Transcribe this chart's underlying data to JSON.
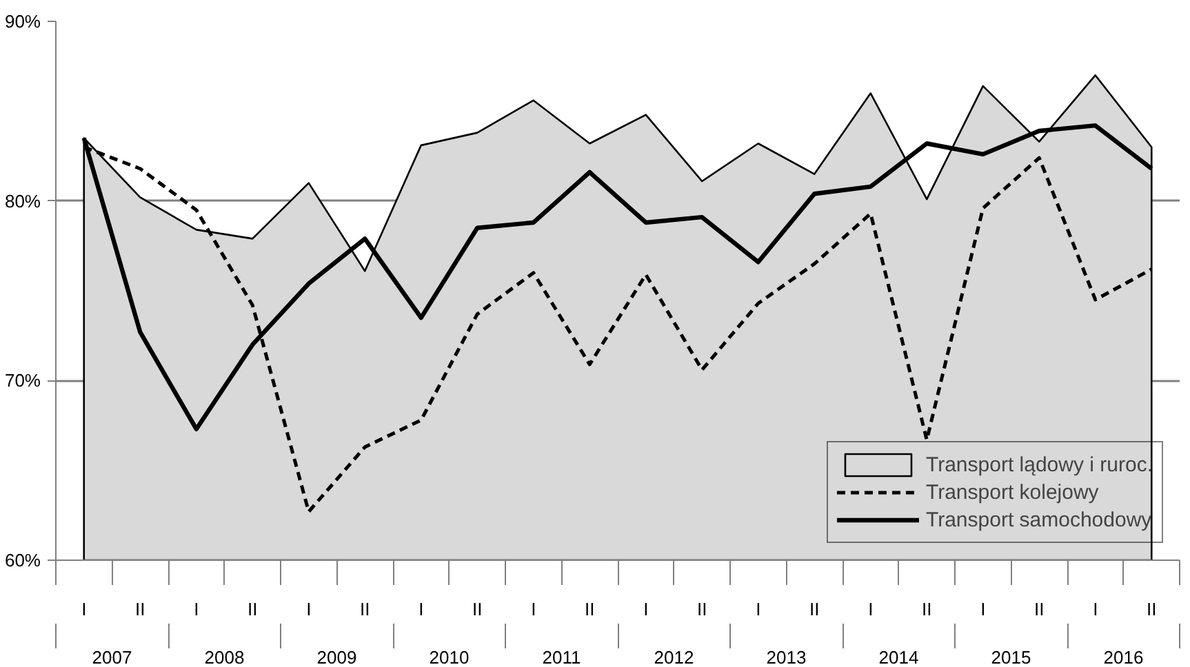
{
  "chart_data": {
    "type": "line",
    "categories": [
      "I",
      "II",
      "I",
      "II",
      "I",
      "II",
      "I",
      "II",
      "I",
      "II",
      "I",
      "II",
      "I",
      "II",
      "I",
      "II",
      "I",
      "II",
      "I",
      "II"
    ],
    "annotations": [
      "2007",
      "2008",
      "2009",
      "2010",
      "2011",
      "2012",
      "2013",
      "2014",
      "2015",
      "2016"
    ],
    "series": [
      {
        "name": "Transport lądowy i ruroc.",
        "type": "area",
        "color": "#d9d9d9",
        "values": [
          83.5,
          80.2,
          78.4,
          77.9,
          81.0,
          76.1,
          83.1,
          83.8,
          85.6,
          83.2,
          84.8,
          81.1,
          83.2,
          81.5,
          86.0,
          80.1,
          86.4,
          83.3,
          87.0,
          83.0
        ]
      },
      {
        "name": "Transport kolejowy",
        "line_style": "dashed",
        "color": "#000000",
        "values": [
          83.0,
          81.8,
          79.5,
          74.2,
          62.7,
          66.3,
          67.8,
          73.7,
          76.0,
          70.9,
          75.9,
          70.6,
          74.3,
          76.5,
          79.3,
          66.7,
          79.6,
          82.4,
          74.5,
          76.2
        ]
      },
      {
        "name": "Transport samochodowy",
        "line_style": "solid",
        "color": "#000000",
        "values": [
          83.5,
          72.7,
          67.3,
          72.0,
          75.4,
          77.9,
          73.5,
          78.5,
          78.8,
          81.6,
          78.8,
          79.1,
          76.6,
          80.4,
          80.8,
          83.2,
          82.6,
          83.9,
          84.2,
          81.8
        ]
      }
    ],
    "ylim": [
      60,
      90
    ],
    "yticks": [
      {
        "value": 60,
        "label": "60%"
      },
      {
        "value": 70,
        "label": "70%"
      },
      {
        "value": 80,
        "label": "80%"
      },
      {
        "value": 90,
        "label": "90%"
      }
    ],
    "grid": "y",
    "legend": "bottom right",
    "marker": "none"
  }
}
